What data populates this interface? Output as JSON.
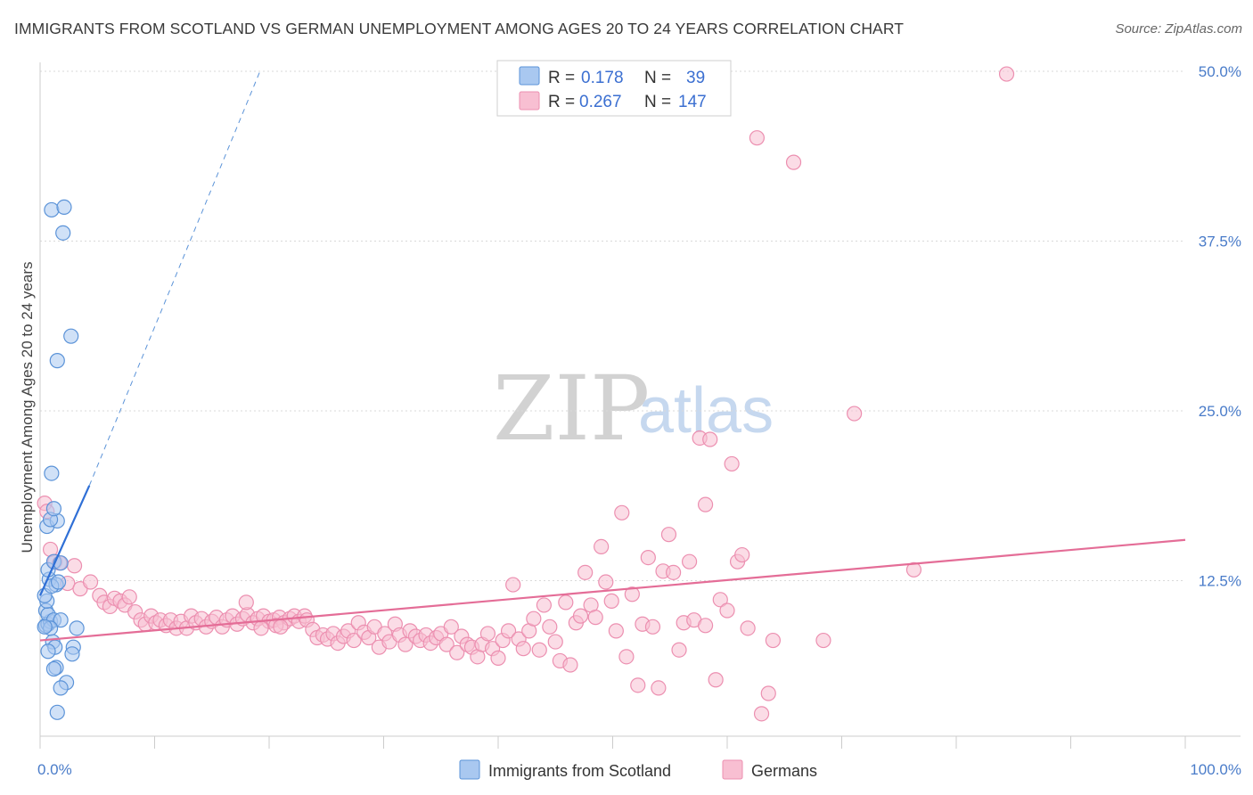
{
  "title": "IMMIGRANTS FROM SCOTLAND VS GERMAN UNEMPLOYMENT AMONG AGES 20 TO 24 YEARS CORRELATION CHART",
  "source": "Source: ZipAtlas.com",
  "watermark": {
    "zip": "ZIP",
    "atlas": "atlas"
  },
  "colors": {
    "blue_fill": "#a9c8f0",
    "blue_stroke": "#5b93d8",
    "blue_line": "#2f6fd6",
    "pink_fill": "#f8bfd2",
    "pink_stroke": "#ec8fb0",
    "pink_line": "#e46d97",
    "grid": "#d9d9d9",
    "axis": "#cccccc",
    "tick_label": "#4a7cc9"
  },
  "legend": {
    "rows": [
      {
        "r_label": "R =",
        "r_value": "0.178",
        "n_label": "N =",
        "n_value": "39"
      },
      {
        "r_label": "R =",
        "r_value": "0.267",
        "n_label": "N =",
        "n_value": "147"
      }
    ]
  },
  "chart_data": {
    "type": "scatter",
    "title": "IMMIGRANTS FROM SCOTLAND VS GERMAN UNEMPLOYMENT AMONG AGES 20 TO 24 YEARS CORRELATION CHART",
    "xlabel": "",
    "ylabel": "Unemployment Among Ages 20 to 24 years",
    "xlim": [
      0,
      100
    ],
    "ylim": [
      0,
      50
    ],
    "x_tick_labels": [
      "0.0%",
      "100.0%"
    ],
    "y_ticks": [
      12.5,
      25.0,
      37.5,
      50.0
    ],
    "y_tick_labels": [
      "12.5%",
      "25.0%",
      "37.5%",
      "50.0%"
    ],
    "grid": true,
    "legend_position": "top-center",
    "series": [
      {
        "name": "Immigrants from Scotland",
        "R": 0.178,
        "N": 39,
        "trend": {
          "x": [
            0,
            4.3
          ],
          "y": [
            11.4,
            19.5
          ]
        },
        "trend_extension": {
          "x": [
            4.3,
            19.2
          ],
          "y": [
            19.5,
            50.0
          ]
        },
        "points": [
          [
            0.5,
            9.2
          ],
          [
            0.7,
            9.3
          ],
          [
            0.9,
            9.5
          ],
          [
            0.5,
            10.3
          ],
          [
            0.7,
            10.0
          ],
          [
            1.2,
            9.6
          ],
          [
            1.8,
            9.6
          ],
          [
            0.6,
            11.0
          ],
          [
            0.4,
            11.4
          ],
          [
            0.8,
            12.6
          ],
          [
            1.4,
            12.2
          ],
          [
            1.0,
            12.1
          ],
          [
            1.6,
            12.4
          ],
          [
            0.7,
            13.3
          ],
          [
            1.2,
            13.9
          ],
          [
            0.6,
            16.5
          ],
          [
            1.5,
            16.9
          ],
          [
            0.9,
            17.0
          ],
          [
            1.2,
            17.8
          ],
          [
            1.0,
            20.4
          ],
          [
            1.5,
            28.7
          ],
          [
            2.7,
            30.5
          ],
          [
            2.0,
            38.1
          ],
          [
            1.0,
            39.8
          ],
          [
            2.1,
            40.0
          ],
          [
            1.1,
            8.0
          ],
          [
            1.3,
            7.6
          ],
          [
            2.9,
            7.6
          ],
          [
            0.7,
            7.3
          ],
          [
            2.8,
            7.1
          ],
          [
            1.4,
            6.1
          ],
          [
            1.2,
            6.0
          ],
          [
            2.3,
            5.0
          ],
          [
            1.8,
            4.6
          ],
          [
            1.5,
            2.8
          ],
          [
            0.9,
            9.0
          ],
          [
            0.4,
            9.1
          ],
          [
            3.2,
            9.0
          ],
          [
            1.8,
            13.8
          ]
        ]
      },
      {
        "name": "Germans",
        "R": 0.267,
        "N": 147,
        "trend": {
          "x": [
            0,
            100
          ],
          "y": [
            8.1,
            15.5
          ]
        },
        "points": [
          [
            0.4,
            18.2
          ],
          [
            0.6,
            17.6
          ],
          [
            0.9,
            14.8
          ],
          [
            1.3,
            13.9
          ],
          [
            1.7,
            13.8
          ],
          [
            3.0,
            13.6
          ],
          [
            2.4,
            12.3
          ],
          [
            3.5,
            11.9
          ],
          [
            4.4,
            12.4
          ],
          [
            5.2,
            11.4
          ],
          [
            5.6,
            10.9
          ],
          [
            6.1,
            10.6
          ],
          [
            6.5,
            11.2
          ],
          [
            7.0,
            11.0
          ],
          [
            7.4,
            10.7
          ],
          [
            7.8,
            11.3
          ],
          [
            8.3,
            10.2
          ],
          [
            8.8,
            9.6
          ],
          [
            9.2,
            9.3
          ],
          [
            9.7,
            9.9
          ],
          [
            10.1,
            9.4
          ],
          [
            10.5,
            9.6
          ],
          [
            11.0,
            9.2
          ],
          [
            11.4,
            9.6
          ],
          [
            11.9,
            9.0
          ],
          [
            12.3,
            9.5
          ],
          [
            12.8,
            9.0
          ],
          [
            13.2,
            9.9
          ],
          [
            13.6,
            9.4
          ],
          [
            14.1,
            9.7
          ],
          [
            14.5,
            9.1
          ],
          [
            15.0,
            9.5
          ],
          [
            15.4,
            9.8
          ],
          [
            15.9,
            9.1
          ],
          [
            16.3,
            9.6
          ],
          [
            16.8,
            9.9
          ],
          [
            17.2,
            9.3
          ],
          [
            17.7,
            9.7
          ],
          [
            18.1,
            10.0
          ],
          [
            18.6,
            9.4
          ],
          [
            19.0,
            9.7
          ],
          [
            19.5,
            9.9
          ],
          [
            20.0,
            9.5
          ],
          [
            20.4,
            9.6
          ],
          [
            20.9,
            9.8
          ],
          [
            21.3,
            9.4
          ],
          [
            21.8,
            9.7
          ],
          [
            22.2,
            9.9
          ],
          [
            22.6,
            9.5
          ],
          [
            23.1,
            9.9
          ],
          [
            18.0,
            10.9
          ],
          [
            20.6,
            9.2
          ],
          [
            19.3,
            9.0
          ],
          [
            21.0,
            9.1
          ],
          [
            23.3,
            9.6
          ],
          [
            23.8,
            8.9
          ],
          [
            24.2,
            8.3
          ],
          [
            24.7,
            8.5
          ],
          [
            25.1,
            8.2
          ],
          [
            25.6,
            8.6
          ],
          [
            26.0,
            7.9
          ],
          [
            26.5,
            8.4
          ],
          [
            26.9,
            8.8
          ],
          [
            27.4,
            8.1
          ],
          [
            27.8,
            9.4
          ],
          [
            28.3,
            8.7
          ],
          [
            28.7,
            8.3
          ],
          [
            29.2,
            9.1
          ],
          [
            29.6,
            7.6
          ],
          [
            30.1,
            8.6
          ],
          [
            30.5,
            8.0
          ],
          [
            31.0,
            9.3
          ],
          [
            31.4,
            8.5
          ],
          [
            31.9,
            7.8
          ],
          [
            32.3,
            8.8
          ],
          [
            32.8,
            8.4
          ],
          [
            33.2,
            8.1
          ],
          [
            33.7,
            8.5
          ],
          [
            34.1,
            7.9
          ],
          [
            34.6,
            8.3
          ],
          [
            35.0,
            8.6
          ],
          [
            35.5,
            7.8
          ],
          [
            35.9,
            9.1
          ],
          [
            36.4,
            7.2
          ],
          [
            36.8,
            8.4
          ],
          [
            37.3,
            7.8
          ],
          [
            37.7,
            7.6
          ],
          [
            38.2,
            6.9
          ],
          [
            38.6,
            7.8
          ],
          [
            39.1,
            8.6
          ],
          [
            39.5,
            7.5
          ],
          [
            40.0,
            6.8
          ],
          [
            40.4,
            8.1
          ],
          [
            40.9,
            8.8
          ],
          [
            41.3,
            12.2
          ],
          [
            41.8,
            8.2
          ],
          [
            42.2,
            7.5
          ],
          [
            42.7,
            8.8
          ],
          [
            43.1,
            9.7
          ],
          [
            43.6,
            7.4
          ],
          [
            44.0,
            10.7
          ],
          [
            44.5,
            9.1
          ],
          [
            45.0,
            8.0
          ],
          [
            45.4,
            6.6
          ],
          [
            45.9,
            10.9
          ],
          [
            46.3,
            6.3
          ],
          [
            46.8,
            9.4
          ],
          [
            47.2,
            9.9
          ],
          [
            47.6,
            13.1
          ],
          [
            48.1,
            10.7
          ],
          [
            48.5,
            9.8
          ],
          [
            49.0,
            15.0
          ],
          [
            49.4,
            12.4
          ],
          [
            49.9,
            11.0
          ],
          [
            50.3,
            8.8
          ],
          [
            50.8,
            17.5
          ],
          [
            51.2,
            6.9
          ],
          [
            51.7,
            11.5
          ],
          [
            52.2,
            4.8
          ],
          [
            52.6,
            9.3
          ],
          [
            53.1,
            14.2
          ],
          [
            53.5,
            9.1
          ],
          [
            54.0,
            4.6
          ],
          [
            54.4,
            13.2
          ],
          [
            54.9,
            15.9
          ],
          [
            55.3,
            13.1
          ],
          [
            55.8,
            7.4
          ],
          [
            56.2,
            9.4
          ],
          [
            56.7,
            13.9
          ],
          [
            57.1,
            9.6
          ],
          [
            57.6,
            23.0
          ],
          [
            58.1,
            9.2
          ],
          [
            58.5,
            22.9
          ],
          [
            59.0,
            5.2
          ],
          [
            59.4,
            11.1
          ],
          [
            60.0,
            10.3
          ],
          [
            60.4,
            21.1
          ],
          [
            60.9,
            13.9
          ],
          [
            61.3,
            14.4
          ],
          [
            61.8,
            9.0
          ],
          [
            63.0,
            2.7
          ],
          [
            62.6,
            45.1
          ],
          [
            63.6,
            4.2
          ],
          [
            64.0,
            8.1
          ],
          [
            65.8,
            43.3
          ],
          [
            68.4,
            8.1
          ],
          [
            71.1,
            24.8
          ],
          [
            76.3,
            13.3
          ],
          [
            84.4,
            49.8
          ],
          [
            58.1,
            18.1
          ]
        ]
      }
    ]
  },
  "bottom_legend": {
    "items": [
      "Immigrants from Scotland",
      "Germans"
    ]
  }
}
